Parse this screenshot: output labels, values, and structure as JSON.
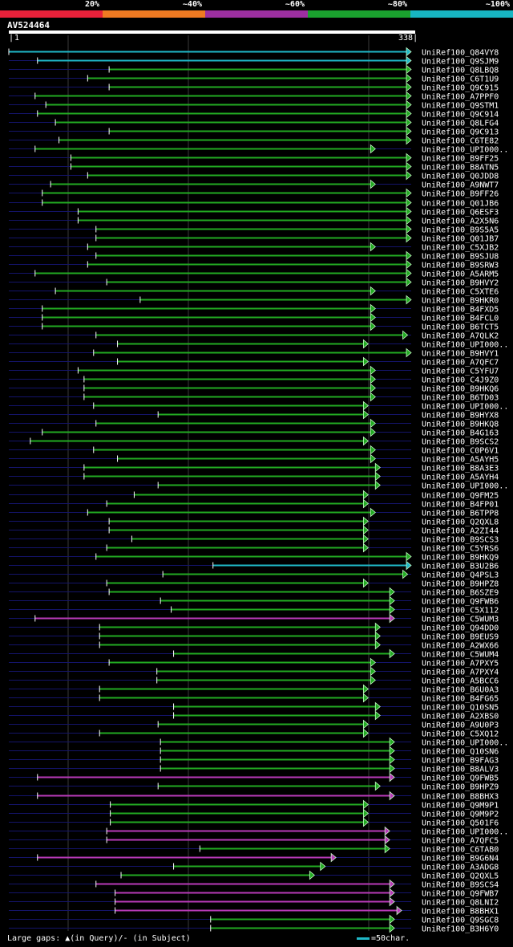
{
  "legend": [
    {
      "label": "20%",
      "color": "#e8213a"
    },
    {
      "label": "~40%",
      "color": "#ef7a22"
    },
    {
      "label": "~60%",
      "color": "#9c2fa0"
    },
    {
      "label": "~80%",
      "color": "#1aa12e"
    },
    {
      "label": "~100%",
      "color": "#17b5c2"
    }
  ],
  "query": {
    "id": "AV524464",
    "start": "1",
    "end": "338",
    "length": 338
  },
  "footer": {
    "gaps_text": "Large gaps: ▲(in Query)/- (in Subject)",
    "scale_text": "=50char."
  },
  "hits": [
    {
      "label": "UniRef100_Q84VY8",
      "start": 1,
      "end": 338,
      "color": "cyan"
    },
    {
      "label": "UniRef100_Q9SJM9",
      "start": 25,
      "end": 338,
      "color": "cyan"
    },
    {
      "label": "UniRef100_Q8LBQ8",
      "start": 85,
      "end": 338,
      "color": "green"
    },
    {
      "label": "UniRef100_C6T1U9",
      "start": 67,
      "end": 338,
      "color": "green"
    },
    {
      "label": "UniRef100_Q9C915",
      "start": 85,
      "end": 338,
      "color": "green"
    },
    {
      "label": "UniRef100_A7PPF0",
      "start": 23,
      "end": 338,
      "color": "green"
    },
    {
      "label": "UniRef100_Q9STM1",
      "start": 32,
      "end": 338,
      "color": "green"
    },
    {
      "label": "UniRef100_Q9C914",
      "start": 25,
      "end": 338,
      "color": "green"
    },
    {
      "label": "UniRef100_Q8LFG4",
      "start": 40,
      "end": 338,
      "color": "green"
    },
    {
      "label": "UniRef100_Q9C913",
      "start": 85,
      "end": 338,
      "color": "green"
    },
    {
      "label": "UniRef100_C6TE82",
      "start": 43,
      "end": 338,
      "color": "green"
    },
    {
      "label": "UniRef100_UPI000..",
      "start": 23,
      "end": 308,
      "color": "green"
    },
    {
      "label": "UniRef100_B9FF25",
      "start": 53,
      "end": 338,
      "color": "green"
    },
    {
      "label": "UniRef100_B8ATN5",
      "start": 53,
      "end": 338,
      "color": "green"
    },
    {
      "label": "UniRef100_Q0JDD8",
      "start": 67,
      "end": 338,
      "color": "green"
    },
    {
      "label": "UniRef100_A9NWT7",
      "start": 36,
      "end": 308,
      "color": "green"
    },
    {
      "label": "UniRef100_B9FF26",
      "start": 29,
      "end": 338,
      "color": "green"
    },
    {
      "label": "UniRef100_Q01JB6",
      "start": 29,
      "end": 338,
      "color": "green"
    },
    {
      "label": "UniRef100_Q6ESF3",
      "start": 59,
      "end": 338,
      "color": "green"
    },
    {
      "label": "UniRef100_A2X5N6",
      "start": 59,
      "end": 338,
      "color": "green"
    },
    {
      "label": "UniRef100_B9S5A5",
      "start": 74,
      "end": 338,
      "color": "green"
    },
    {
      "label": "UniRef100_Q01JB7",
      "start": 74,
      "end": 338,
      "color": "green"
    },
    {
      "label": "UniRef100_C5XJB2",
      "start": 67,
      "end": 308,
      "color": "green"
    },
    {
      "label": "UniRef100_B9SJU8",
      "start": 74,
      "end": 338,
      "color": "green"
    },
    {
      "label": "UniRef100_B9SRW3",
      "start": 67,
      "end": 338,
      "color": "green"
    },
    {
      "label": "UniRef100_A5ARM5",
      "start": 23,
      "end": 338,
      "color": "green"
    },
    {
      "label": "UniRef100_B9HVY2",
      "start": 83,
      "end": 338,
      "color": "green"
    },
    {
      "label": "UniRef100_C5XTE6",
      "start": 40,
      "end": 308,
      "color": "green"
    },
    {
      "label": "UniRef100_B9HKR0",
      "start": 111,
      "end": 338,
      "color": "green"
    },
    {
      "label": "UniRef100_B4FXD5",
      "start": 29,
      "end": 308,
      "color": "green"
    },
    {
      "label": "UniRef100_B4FCL0",
      "start": 29,
      "end": 308,
      "color": "green"
    },
    {
      "label": "UniRef100_B6TCT5",
      "start": 29,
      "end": 308,
      "color": "green"
    },
    {
      "label": "UniRef100_A7QLK2",
      "start": 74,
      "end": 335,
      "color": "green"
    },
    {
      "label": "UniRef100_UPI000..",
      "start": 92,
      "end": 302,
      "color": "green"
    },
    {
      "label": "UniRef100_B9HVY1",
      "start": 72,
      "end": 338,
      "color": "green"
    },
    {
      "label": "UniRef100_A7QFC7",
      "start": 92,
      "end": 302,
      "color": "green"
    },
    {
      "label": "UniRef100_C5YFU7",
      "start": 59,
      "end": 308,
      "color": "green"
    },
    {
      "label": "UniRef100_C4J9Z0",
      "start": 64,
      "end": 308,
      "color": "green"
    },
    {
      "label": "UniRef100_B9HKQ6",
      "start": 64,
      "end": 308,
      "color": "green"
    },
    {
      "label": "UniRef100_B6TD03",
      "start": 64,
      "end": 308,
      "color": "green"
    },
    {
      "label": "UniRef100_UPI000..",
      "start": 72,
      "end": 302,
      "color": "green"
    },
    {
      "label": "UniRef100_B9HYX8",
      "start": 126,
      "end": 302,
      "color": "green"
    },
    {
      "label": "UniRef100_B9HKQ8",
      "start": 74,
      "end": 308,
      "color": "green"
    },
    {
      "label": "UniRef100_B4G163",
      "start": 29,
      "end": 308,
      "color": "green"
    },
    {
      "label": "UniRef100_B9SCS2",
      "start": 19,
      "end": 302,
      "color": "green"
    },
    {
      "label": "UniRef100_C0P6V1",
      "start": 72,
      "end": 308,
      "color": "green"
    },
    {
      "label": "UniRef100_A5AYH5",
      "start": 92,
      "end": 308,
      "color": "green"
    },
    {
      "label": "UniRef100_B8A3E3",
      "start": 64,
      "end": 312,
      "color": "green"
    },
    {
      "label": "UniRef100_A5AYH4",
      "start": 64,
      "end": 312,
      "color": "green"
    },
    {
      "label": "UniRef100_UPI000..",
      "start": 126,
      "end": 312,
      "color": "green"
    },
    {
      "label": "UniRef100_Q9FM25",
      "start": 106,
      "end": 302,
      "color": "green"
    },
    {
      "label": "UniRef100_B4FP01",
      "start": 83,
      "end": 302,
      "color": "green"
    },
    {
      "label": "UniRef100_B6TPP8",
      "start": 67,
      "end": 308,
      "color": "green"
    },
    {
      "label": "UniRef100_Q2QXL8",
      "start": 85,
      "end": 302,
      "color": "green"
    },
    {
      "label": "UniRef100_A2ZI44",
      "start": 85,
      "end": 302,
      "color": "green"
    },
    {
      "label": "UniRef100_B9SCS3",
      "start": 104,
      "end": 302,
      "color": "green"
    },
    {
      "label": "UniRef100_C5YRS6",
      "start": 83,
      "end": 302,
      "color": "green"
    },
    {
      "label": "UniRef100_B9HKQ9",
      "start": 74,
      "end": 338,
      "color": "green"
    },
    {
      "label": "UniRef100_B3U2B6",
      "start": 172,
      "end": 338,
      "color": "cyan"
    },
    {
      "label": "UniRef100_Q4PSL3",
      "start": 130,
      "end": 335,
      "color": "green"
    },
    {
      "label": "UniRef100_B9HPZ8",
      "start": 83,
      "end": 302,
      "color": "green"
    },
    {
      "label": "UniRef100_B6SZE9",
      "start": 85,
      "end": 324,
      "color": "green"
    },
    {
      "label": "UniRef100_Q9FWB6",
      "start": 128,
      "end": 324,
      "color": "green"
    },
    {
      "label": "UniRef100_C5X112",
      "start": 137,
      "end": 324,
      "color": "green"
    },
    {
      "label": "UniRef100_C5WUM3",
      "start": 23,
      "end": 324,
      "color": "magenta"
    },
    {
      "label": "UniRef100_Q94DD0",
      "start": 77,
      "end": 312,
      "color": "green"
    },
    {
      "label": "UniRef100_B9EUS9",
      "start": 77,
      "end": 312,
      "color": "green"
    },
    {
      "label": "UniRef100_A2WX66",
      "start": 77,
      "end": 312,
      "color": "green"
    },
    {
      "label": "UniRef100_C5WUM4",
      "start": 139,
      "end": 324,
      "color": "green"
    },
    {
      "label": "UniRef100_A7PXY5",
      "start": 85,
      "end": 308,
      "color": "green"
    },
    {
      "label": "UniRef100_A7PXY4",
      "start": 125,
      "end": 308,
      "color": "green"
    },
    {
      "label": "UniRef100_A5BCC6",
      "start": 125,
      "end": 308,
      "color": "green"
    },
    {
      "label": "UniRef100_B6U0A3",
      "start": 77,
      "end": 302,
      "color": "green"
    },
    {
      "label": "UniRef100_B4FG65",
      "start": 77,
      "end": 302,
      "color": "green"
    },
    {
      "label": "UniRef100_Q10SN5",
      "start": 139,
      "end": 312,
      "color": "green"
    },
    {
      "label": "UniRef100_A2XBS0",
      "start": 139,
      "end": 312,
      "color": "green"
    },
    {
      "label": "UniRef100_A9U0P3",
      "start": 126,
      "end": 302,
      "color": "green"
    },
    {
      "label": "UniRef100_C5XQ12",
      "start": 77,
      "end": 302,
      "color": "green"
    },
    {
      "label": "UniRef100_UPI000..",
      "start": 128,
      "end": 324,
      "color": "green"
    },
    {
      "label": "UniRef100_Q10SN6",
      "start": 128,
      "end": 324,
      "color": "green"
    },
    {
      "label": "UniRef100_B9FAG3",
      "start": 128,
      "end": 324,
      "color": "green"
    },
    {
      "label": "UniRef100_B8ALV3",
      "start": 128,
      "end": 324,
      "color": "green"
    },
    {
      "label": "UniRef100_Q9FWB5",
      "start": 25,
      "end": 324,
      "color": "magenta"
    },
    {
      "label": "UniRef100_B9HPZ9",
      "start": 126,
      "end": 312,
      "color": "green"
    },
    {
      "label": "UniRef100_B8BHX3",
      "start": 25,
      "end": 324,
      "color": "magenta"
    },
    {
      "label": "UniRef100_Q9M9P1",
      "start": 86,
      "end": 302,
      "color": "green"
    },
    {
      "label": "UniRef100_Q9M9P2",
      "start": 86,
      "end": 302,
      "color": "green"
    },
    {
      "label": "UniRef100_Q501F6",
      "start": 86,
      "end": 302,
      "color": "green"
    },
    {
      "label": "UniRef100_UPI000..",
      "start": 83,
      "end": 320,
      "color": "magenta"
    },
    {
      "label": "UniRef100_A7QFC5",
      "start": 83,
      "end": 320,
      "color": "magenta"
    },
    {
      "label": "UniRef100_C6TAB0",
      "start": 161,
      "end": 320,
      "color": "green"
    },
    {
      "label": "UniRef100_B9G6N4",
      "start": 25,
      "end": 275,
      "color": "magenta"
    },
    {
      "label": "UniRef100_A3ADG8",
      "start": 139,
      "end": 266,
      "color": "green"
    },
    {
      "label": "UniRef100_Q2QXL5",
      "start": 95,
      "end": 257,
      "color": "green"
    },
    {
      "label": "UniRef100_B9SCS4",
      "start": 74,
      "end": 324,
      "color": "magenta"
    },
    {
      "label": "UniRef100_Q9FWB7",
      "start": 90,
      "end": 324,
      "color": "magenta"
    },
    {
      "label": "UniRef100_Q8LNI2",
      "start": 90,
      "end": 324,
      "color": "magenta"
    },
    {
      "label": "UniRef100_B8BHX1",
      "start": 90,
      "end": 330,
      "color": "magenta"
    },
    {
      "label": "UniRef100_Q9SGC8",
      "start": 170,
      "end": 324,
      "color": "green"
    },
    {
      "label": "UniRef100_B3H6Y0",
      "start": 170,
      "end": 324,
      "color": "green"
    }
  ]
}
